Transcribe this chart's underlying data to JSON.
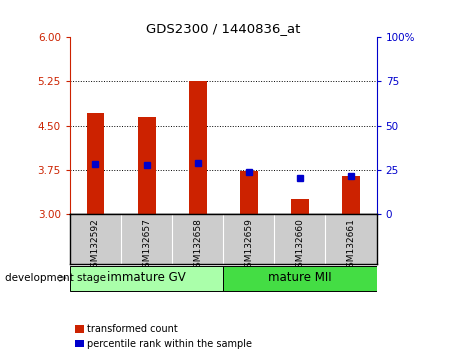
{
  "title": "GDS2300 / 1440836_at",
  "samples": [
    "GSM132592",
    "GSM132657",
    "GSM132658",
    "GSM132659",
    "GSM132660",
    "GSM132661"
  ],
  "red_values": [
    4.72,
    4.65,
    5.25,
    3.73,
    3.25,
    3.65
  ],
  "blue_values": [
    3.85,
    3.83,
    3.87,
    3.72,
    3.62,
    3.65
  ],
  "ylim_left": [
    3.0,
    6.0
  ],
  "ylim_right": [
    0,
    100
  ],
  "yticks_left": [
    3.0,
    3.75,
    4.5,
    5.25,
    6.0
  ],
  "yticks_right": [
    0,
    25,
    50,
    75,
    100
  ],
  "ytick_labels_right": [
    "0",
    "25",
    "50",
    "75",
    "100%"
  ],
  "hlines": [
    3.75,
    4.5,
    5.25
  ],
  "groups": [
    {
      "label": "immature GV",
      "start": 0,
      "end": 3,
      "color": "#aaffaa"
    },
    {
      "label": "mature MII",
      "start": 3,
      "end": 6,
      "color": "#44dd44"
    }
  ],
  "bar_width": 0.35,
  "left_tick_color": "#cc2200",
  "right_tick_color": "#0000cc",
  "label_bg_color": "#cccccc",
  "legend_red": "transformed count",
  "legend_blue": "percentile rank within the sample",
  "dev_stage_label": "development stage"
}
